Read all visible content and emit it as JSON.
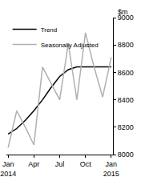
{
  "chart_data": {
    "type": "line",
    "y_label": "$m",
    "categories": [
      "Jan 2014",
      null,
      null,
      "Apr",
      null,
      null,
      "Jul",
      null,
      null,
      "Oct",
      null,
      null,
      "Jan 2015"
    ],
    "series": [
      {
        "name": "Trend",
        "color": "#000000",
        "values": [
          8150,
          8190,
          8250,
          8320,
          8400,
          8490,
          8570,
          8620,
          8640,
          8640,
          8640,
          8640,
          8640
        ]
      },
      {
        "name": "Seasonally Adjusted",
        "color": "#b0b0b0",
        "values": [
          8050,
          8320,
          8200,
          8070,
          8640,
          8520,
          8400,
          8810,
          8400,
          8890,
          8640,
          8420,
          8710
        ]
      }
    ],
    "ylim": [
      8000,
      9000
    ],
    "yticks": [
      8000,
      8200,
      8400,
      8600,
      8800,
      9000
    ],
    "grid": false,
    "legend": "upper left"
  }
}
